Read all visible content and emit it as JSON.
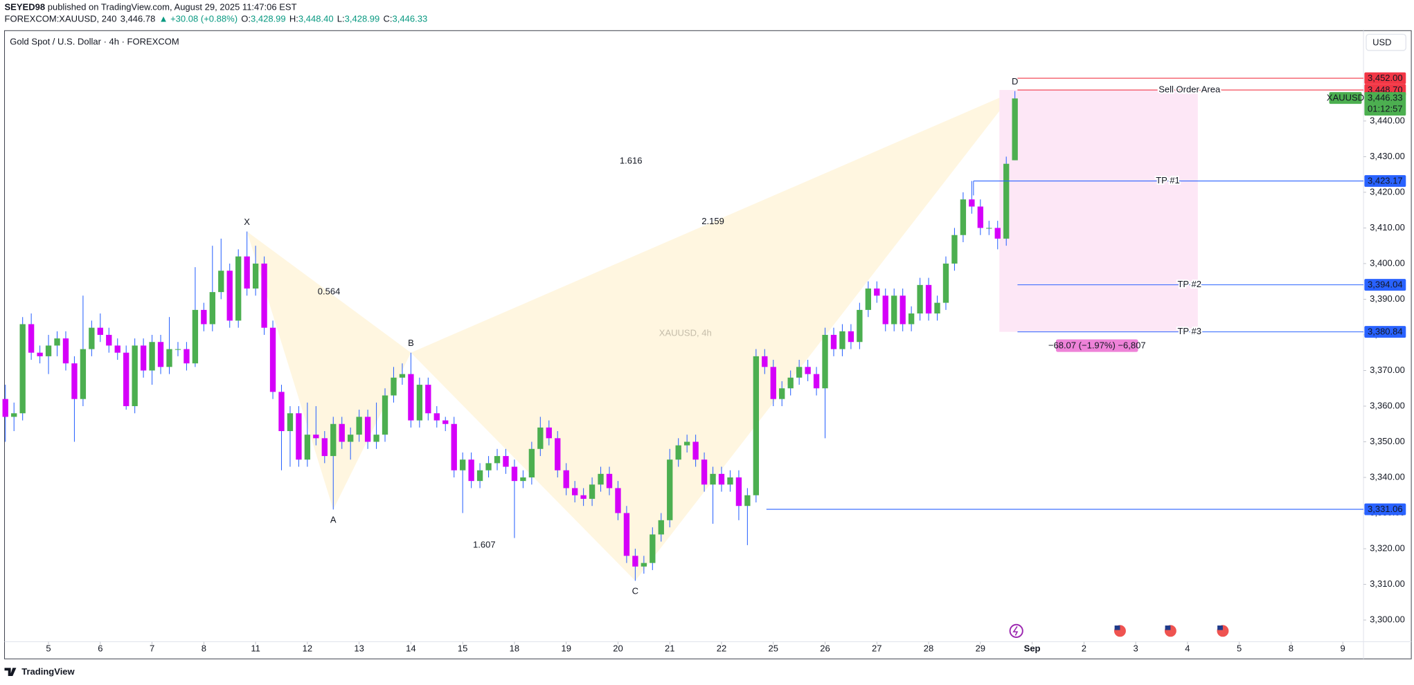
{
  "header": {
    "author": "SEYED98",
    "published": " published on TradingView.com, August 29, 2025 11:47:06 EST",
    "symbol": "FOREXCOM:XAUUSD, 240",
    "last": "3,446.78",
    "change": "▲ +30.08 (+0.88%)",
    "ohlc": [
      {
        "key": "O:",
        "value": "3,428.99"
      },
      {
        "key": "H:",
        "value": "3,448.40"
      },
      {
        "key": "L:",
        "value": "3,428.99"
      },
      {
        "key": "C:",
        "value": "3,446.33"
      }
    ]
  },
  "footer": {
    "brand": "TradingView"
  },
  "chart_data": {
    "type": "candlestick",
    "title": "Gold Spot / U.S. Dollar · 4h · FOREXCOM",
    "watermark": "XAUUSD, 4h",
    "currency": "USD",
    "up_color": "#4caf50",
    "down_color": "#d500f9",
    "wick_color": "#2962ff",
    "grid": false,
    "xlim": [
      -0.1,
      157.4
    ],
    "ylim": [
      3293.9,
      3465.1
    ],
    "xticks": [
      {
        "value": 5,
        "label": "5"
      },
      {
        "value": 11,
        "label": "6"
      },
      {
        "value": 17,
        "label": "7"
      },
      {
        "value": 23,
        "label": "8"
      },
      {
        "value": 29,
        "label": "11"
      },
      {
        "value": 35,
        "label": "12"
      },
      {
        "value": 41,
        "label": "13"
      },
      {
        "value": 47,
        "label": "14"
      },
      {
        "value": 53,
        "label": "15"
      },
      {
        "value": 59,
        "label": "18"
      },
      {
        "value": 65,
        "label": "19"
      },
      {
        "value": 71,
        "label": "20"
      },
      {
        "value": 77,
        "label": "21"
      },
      {
        "value": 83,
        "label": "22"
      },
      {
        "value": 89,
        "label": "25"
      },
      {
        "value": 95,
        "label": "26"
      },
      {
        "value": 101,
        "label": "27"
      },
      {
        "value": 107,
        "label": "28"
      },
      {
        "value": 113,
        "label": "29"
      },
      {
        "value": 119,
        "label": "Sep"
      },
      {
        "value": 125,
        "label": "2"
      },
      {
        "value": 131,
        "label": "3"
      },
      {
        "value": 137,
        "label": "4"
      },
      {
        "value": 143,
        "label": "5"
      },
      {
        "value": 149,
        "label": "8"
      },
      {
        "value": 155,
        "label": "9"
      }
    ],
    "yticks": [
      {
        "value": 3300,
        "label": "3,300.00"
      },
      {
        "value": 3310,
        "label": "3,310.00"
      },
      {
        "value": 3320,
        "label": "3,320.00"
      },
      {
        "value": 3330,
        "label": "3,330.00"
      },
      {
        "value": 3340,
        "label": "3,340.00"
      },
      {
        "value": 3350,
        "label": "3,350.00"
      },
      {
        "value": 3360,
        "label": "3,360.00"
      },
      {
        "value": 3370,
        "label": "3,370.00"
      },
      {
        "value": 3380,
        "label": "3,380.00"
      },
      {
        "value": 3390,
        "label": "3,390.00"
      },
      {
        "value": 3400,
        "label": "3,400.00"
      },
      {
        "value": 3410,
        "label": "3,410.00"
      },
      {
        "value": 3420,
        "label": "3,420.00"
      },
      {
        "value": 3430,
        "label": "3,430.00"
      },
      {
        "value": 3440,
        "label": "3,440.00"
      }
    ],
    "x": [
      0,
      1,
      2,
      3,
      4,
      5,
      6,
      7,
      8,
      9,
      10,
      11,
      12,
      13,
      14,
      15,
      16,
      17,
      18,
      19,
      20,
      21,
      22,
      23,
      24,
      25,
      26,
      27,
      28,
      29,
      30,
      31,
      32,
      33,
      34,
      35,
      36,
      37,
      38,
      39,
      40,
      41,
      42,
      43,
      44,
      45,
      46,
      47,
      48,
      49,
      50,
      51,
      52,
      53,
      54,
      55,
      56,
      57,
      58,
      59,
      60,
      61,
      62,
      63,
      64,
      65,
      66,
      67,
      68,
      69,
      70,
      71,
      72,
      73,
      74,
      75,
      76,
      77,
      78,
      79,
      80,
      81,
      82,
      83,
      84,
      85,
      86,
      87,
      88,
      89,
      90,
      91,
      92,
      93,
      94,
      95,
      96,
      97,
      98,
      99,
      100,
      101,
      102,
      103,
      104,
      105,
      106,
      107,
      108,
      109,
      110,
      111,
      112,
      113,
      114,
      115,
      116,
      117
    ],
    "open": [
      3362,
      3357,
      3358,
      3383,
      3375,
      3374,
      3377,
      3379,
      3372,
      3362,
      3376,
      3382,
      3380,
      3377,
      3375,
      3360,
      3377,
      3370,
      3378,
      3371,
      3376,
      3376,
      3372,
      3387,
      3383,
      3392,
      3398,
      3384,
      3402,
      3393,
      3400,
      3382,
      3364,
      3353,
      3358,
      3345,
      3352,
      3351,
      3346,
      3355,
      3350,
      3352,
      3357,
      3350,
      3352,
      3363,
      3368,
      3369,
      3356,
      3366,
      3358,
      3356,
      3355,
      3342,
      3345,
      3339,
      3342,
      3344,
      3346,
      3343,
      3339,
      3340,
      3348,
      3354,
      3351,
      3342,
      3337,
      3335,
      3334,
      3338,
      3341,
      3337,
      3330,
      3318,
      3315,
      3316,
      3324,
      3328,
      3345,
      3349,
      3350,
      3345,
      3338,
      3341,
      3338,
      3340,
      3332,
      3335,
      3374,
      3371,
      3362,
      3365,
      3368,
      3371,
      3369,
      3365,
      3380,
      3376,
      3381,
      3378,
      3387,
      3393,
      3391,
      3383,
      3391,
      3383,
      3386,
      3394,
      3386,
      3389,
      3400,
      3408,
      3418,
      3416,
      3410,
      3410,
      3407,
      3428.99
    ],
    "high": [
      3366,
      3361,
      3385,
      3386,
      3377,
      3380,
      3381,
      3381,
      3374,
      3391,
      3384,
      3386,
      3382,
      3379,
      3377,
      3379,
      3379,
      3380,
      3380,
      3385,
      3378,
      3378,
      3399,
      3389,
      3405,
      3407,
      3400,
      3404,
      3409,
      3405,
      3402,
      3384,
      3366,
      3360,
      3360,
      3361,
      3360,
      3353,
      3357,
      3357,
      3354,
      3359,
      3359,
      3361,
      3365,
      3371,
      3372,
      3375,
      3368,
      3368,
      3360,
      3357,
      3357,
      3347,
      3347,
      3344,
      3346,
      3348,
      3348,
      3345,
      3342,
      3350,
      3357,
      3356,
      3353,
      3344,
      3339,
      3337,
      3340,
      3343,
      3343,
      3339,
      3332,
      3320,
      3318,
      3326,
      3330,
      3348,
      3351,
      3352,
      3352,
      3347,
      3343,
      3343,
      3342,
      3342,
      3337,
      3376,
      3376,
      3373,
      3367,
      3370,
      3373,
      3373,
      3371,
      3382,
      3382,
      3383,
      3383,
      3389,
      3395,
      3395,
      3393,
      3393,
      3393,
      3388,
      3396,
      3396,
      3391,
      3402,
      3410,
      3420,
      3423.17,
      3418,
      3412,
      3412,
      3430,
      3448.4
    ],
    "low": [
      3350,
      3353,
      3356,
      3373,
      3372,
      3369,
      3374,
      3370,
      3350,
      3360,
      3374,
      3378,
      3375,
      3373,
      3359,
      3358,
      3368,
      3366,
      3369,
      3369,
      3374,
      3370,
      3371,
      3381,
      3381,
      3390,
      3382,
      3382,
      3391,
      3391,
      3380,
      3362,
      3342,
      3343,
      3343,
      3343,
      3349,
      3344,
      3331,
      3348,
      3345,
      3350,
      3348,
      3348,
      3350,
      3361,
      3366,
      3354,
      3354,
      3356,
      3354,
      3353,
      3340,
      3330,
      3337,
      3337,
      3340,
      3342,
      3341,
      3323,
      3337,
      3338,
      3346,
      3349,
      3340,
      3335,
      3333,
      3332,
      3332,
      3336,
      3335,
      3328,
      3316,
      3311,
      3313,
      3314,
      3322,
      3326,
      3343,
      3347,
      3343,
      3336,
      3327,
      3336,
      3336,
      3328,
      3321,
      3333,
      3369,
      3360,
      3360,
      3363,
      3366,
      3367,
      3363,
      3351,
      3374,
      3374,
      3376,
      3376,
      3385,
      3389,
      3381,
      3381,
      3381,
      3381,
      3384,
      3384,
      3384,
      3387,
      3398,
      3406,
      3414,
      3408,
      3408,
      3404,
      3405,
      3428.99
    ],
    "close": [
      3357,
      3358,
      3383,
      3375,
      3374,
      3377,
      3379,
      3372,
      3362,
      3376,
      3382,
      3380,
      3377,
      3375,
      3360,
      3377,
      3370,
      3378,
      3371,
      3376,
      3376,
      3372,
      3387,
      3383,
      3392,
      3398,
      3384,
      3402,
      3393,
      3400,
      3382,
      3364,
      3353,
      3358,
      3345,
      3352,
      3351,
      3346,
      3355,
      3350,
      3352,
      3357,
      3350,
      3352,
      3363,
      3368,
      3369,
      3356,
      3366,
      3358,
      3356,
      3355,
      3342,
      3345,
      3339,
      3342,
      3344,
      3346,
      3343,
      3339,
      3340,
      3348,
      3354,
      3351,
      3342,
      3337,
      3335,
      3334,
      3338,
      3341,
      3337,
      3330,
      3318,
      3315,
      3316,
      3324,
      3328,
      3345,
      3349,
      3350,
      3345,
      3338,
      3341,
      3338,
      3340,
      3332,
      3335,
      3374,
      3371,
      3362,
      3365,
      3368,
      3371,
      3369,
      3365,
      3380,
      3376,
      3381,
      3378,
      3387,
      3393,
      3391,
      3383,
      3391,
      3383,
      3386,
      3394,
      3386,
      3389,
      3400,
      3408,
      3418,
      3416,
      3410,
      3410,
      3407,
      3428,
      3446.33
    ],
    "pattern": {
      "color": "#ff9800",
      "fill": "#fff3d6",
      "points": [
        {
          "label": "X",
          "x": 28,
          "y": 3409
        },
        {
          "label": "A",
          "x": 38,
          "y": 3331
        },
        {
          "label": "B",
          "x": 47,
          "y": 3375
        },
        {
          "label": "C",
          "x": 73,
          "y": 3311
        },
        {
          "label": "D",
          "x": 117,
          "y": 3448.4
        }
      ],
      "ratios": [
        0.564,
        1.607,
        2.159,
        1.616
      ]
    },
    "levels": [
      {
        "value": 3452.0,
        "label": "3,452.00",
        "color": "#f23645"
      },
      {
        "value": 3448.7,
        "label": "3,448.70",
        "color": "#f23645",
        "name": "Sell Order Area"
      },
      {
        "value": 3423.17,
        "label": "3,423.17",
        "color": "#2962ff",
        "name": "TP #1"
      },
      {
        "value": 3394.04,
        "label": "3,394.04",
        "color": "#2962ff",
        "name": "TP #2"
      },
      {
        "value": 3380.84,
        "label": "3,380.84",
        "color": "#2962ff",
        "name": "TP #3"
      },
      {
        "value": 3331.06,
        "label": "3,331.06",
        "color": "#2962ff"
      }
    ],
    "zone_color": "#fde7f6",
    "measure_label": "−68.07 (−1.97%) −6,807",
    "last_price": {
      "value": 3446.33,
      "label": "3,446.33",
      "countdown": "01:12:57",
      "symbol": "XAUUSD",
      "color": "#4caf50"
    }
  }
}
